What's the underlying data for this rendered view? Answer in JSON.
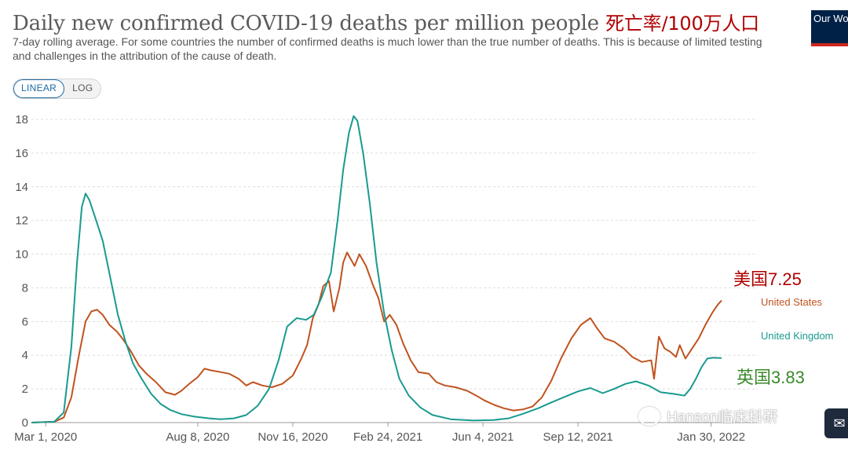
{
  "title": "Daily new confirmed COVID-19 deaths per million people",
  "title_cn": "死亡率/100万人口",
  "subtitle": "7-day rolling average. For some countries the number of confirmed deaths is much lower than the true number of deaths. This is because of limited testing and challenges in the attribution of the cause of death.",
  "logo_text": "Our World in Data",
  "scale_toggle": {
    "linear": "LINEAR",
    "log": "LOG",
    "selected": "LINEAR"
  },
  "watermark": "Hanson临床科研",
  "colors": {
    "us": "#c0531f",
    "uk": "#1a9a8f",
    "cn_us": "#b00000",
    "cn_uk": "#3a8a2a",
    "grid": "#dddddd",
    "axis_text": "#555555"
  },
  "chart_data": {
    "type": "line",
    "title": "Daily new confirmed COVID-19 deaths per million people",
    "subtitle": "7-day rolling average",
    "ylabel": "",
    "xlabel": "",
    "ylim": [
      0,
      18
    ],
    "yticks": [
      0,
      2,
      4,
      6,
      8,
      10,
      12,
      14,
      16,
      18
    ],
    "xlim": [
      "2020-02-15",
      "2022-03-20"
    ],
    "xticks": [
      {
        "label": "Mar 1, 2020",
        "date": "2020-03-01"
      },
      {
        "label": "Aug 8, 2020",
        "date": "2020-08-08"
      },
      {
        "label": "Nov 16, 2020",
        "date": "2020-11-16"
      },
      {
        "label": "Feb 24, 2021",
        "date": "2021-02-24"
      },
      {
        "label": "Jun 4, 2021",
        "date": "2021-06-04"
      },
      {
        "label": "Sep 12, 2021",
        "date": "2021-09-12"
      },
      {
        "label": "Jan 30, 2022",
        "date": "2022-01-30"
      }
    ],
    "grid": true,
    "series": [
      {
        "name": "United States",
        "color": "#c0531f",
        "end_label": "United States",
        "annotation": "美国7.25",
        "points": [
          [
            "2020-02-15",
            0
          ],
          [
            "2020-03-10",
            0.05
          ],
          [
            "2020-03-20",
            0.3
          ],
          [
            "2020-03-28",
            1.5
          ],
          [
            "2020-04-05",
            4.0
          ],
          [
            "2020-04-12",
            6.0
          ],
          [
            "2020-04-18",
            6.6
          ],
          [
            "2020-04-24",
            6.7
          ],
          [
            "2020-04-30",
            6.4
          ],
          [
            "2020-05-07",
            5.8
          ],
          [
            "2020-05-15",
            5.4
          ],
          [
            "2020-05-22",
            4.9
          ],
          [
            "2020-05-30",
            4.2
          ],
          [
            "2020-06-07",
            3.4
          ],
          [
            "2020-06-15",
            2.9
          ],
          [
            "2020-06-25",
            2.4
          ],
          [
            "2020-07-05",
            1.8
          ],
          [
            "2020-07-15",
            1.65
          ],
          [
            "2020-07-22",
            1.9
          ],
          [
            "2020-07-30",
            2.3
          ],
          [
            "2020-08-08",
            2.7
          ],
          [
            "2020-08-15",
            3.2
          ],
          [
            "2020-08-22",
            3.1
          ],
          [
            "2020-09-01",
            3.0
          ],
          [
            "2020-09-10",
            2.9
          ],
          [
            "2020-09-20",
            2.6
          ],
          [
            "2020-09-28",
            2.2
          ],
          [
            "2020-10-05",
            2.4
          ],
          [
            "2020-10-15",
            2.2
          ],
          [
            "2020-10-25",
            2.1
          ],
          [
            "2020-11-05",
            2.3
          ],
          [
            "2020-11-16",
            2.8
          ],
          [
            "2020-11-25",
            3.8
          ],
          [
            "2020-12-01",
            4.6
          ],
          [
            "2020-12-07",
            6.2
          ],
          [
            "2020-12-13",
            7.0
          ],
          [
            "2020-12-18",
            8.1
          ],
          [
            "2020-12-24",
            8.4
          ],
          [
            "2020-12-29",
            6.6
          ],
          [
            "2021-01-04",
            8.0
          ],
          [
            "2021-01-08",
            9.5
          ],
          [
            "2021-01-12",
            10.1
          ],
          [
            "2021-01-16",
            9.7
          ],
          [
            "2021-01-20",
            9.3
          ],
          [
            "2021-01-25",
            10.0
          ],
          [
            "2021-02-01",
            9.3
          ],
          [
            "2021-02-08",
            8.2
          ],
          [
            "2021-02-14",
            7.4
          ],
          [
            "2021-02-20",
            6.0
          ],
          [
            "2021-02-26",
            6.4
          ],
          [
            "2021-03-05",
            5.8
          ],
          [
            "2021-03-12",
            4.7
          ],
          [
            "2021-03-20",
            3.7
          ],
          [
            "2021-03-28",
            3.0
          ],
          [
            "2021-04-08",
            2.9
          ],
          [
            "2021-04-16",
            2.4
          ],
          [
            "2021-04-25",
            2.2
          ],
          [
            "2021-05-06",
            2.1
          ],
          [
            "2021-05-18",
            1.9
          ],
          [
            "2021-05-28",
            1.6
          ],
          [
            "2021-06-06",
            1.3
          ],
          [
            "2021-06-16",
            1.05
          ],
          [
            "2021-06-26",
            0.85
          ],
          [
            "2021-07-06",
            0.72
          ],
          [
            "2021-07-16",
            0.78
          ],
          [
            "2021-07-26",
            0.95
          ],
          [
            "2021-08-05",
            1.5
          ],
          [
            "2021-08-15",
            2.5
          ],
          [
            "2021-08-25",
            3.8
          ],
          [
            "2021-09-05",
            5.0
          ],
          [
            "2021-09-15",
            5.8
          ],
          [
            "2021-09-25",
            6.2
          ],
          [
            "2021-10-02",
            5.6
          ],
          [
            "2021-10-10",
            5.0
          ],
          [
            "2021-10-20",
            4.8
          ],
          [
            "2021-10-30",
            4.4
          ],
          [
            "2021-11-08",
            3.9
          ],
          [
            "2021-11-18",
            3.6
          ],
          [
            "2021-11-28",
            3.7
          ],
          [
            "2021-12-01",
            2.6
          ],
          [
            "2021-12-06",
            5.1
          ],
          [
            "2021-12-12",
            4.4
          ],
          [
            "2021-12-18",
            4.2
          ],
          [
            "2021-12-24",
            3.9
          ],
          [
            "2021-12-28",
            4.6
          ],
          [
            "2022-01-03",
            3.8
          ],
          [
            "2022-01-10",
            4.4
          ],
          [
            "2022-01-17",
            5.0
          ],
          [
            "2022-01-24",
            5.8
          ],
          [
            "2022-01-31",
            6.5
          ],
          [
            "2022-02-06",
            7.0
          ],
          [
            "2022-02-10",
            7.25
          ]
        ]
      },
      {
        "name": "United Kingdom",
        "color": "#1a9a8f",
        "end_label": "United Kingdom",
        "annotation": "英国3.83",
        "points": [
          [
            "2020-02-15",
            0
          ],
          [
            "2020-03-10",
            0.05
          ],
          [
            "2020-03-20",
            0.6
          ],
          [
            "2020-03-28",
            4.5
          ],
          [
            "2020-04-03",
            9.5
          ],
          [
            "2020-04-08",
            12.8
          ],
          [
            "2020-04-12",
            13.6
          ],
          [
            "2020-04-16",
            13.2
          ],
          [
            "2020-04-22",
            12.2
          ],
          [
            "2020-04-30",
            10.8
          ],
          [
            "2020-05-08",
            8.6
          ],
          [
            "2020-05-16",
            6.4
          ],
          [
            "2020-05-24",
            4.8
          ],
          [
            "2020-06-01",
            3.5
          ],
          [
            "2020-06-10",
            2.6
          ],
          [
            "2020-06-20",
            1.7
          ],
          [
            "2020-06-30",
            1.1
          ],
          [
            "2020-07-10",
            0.75
          ],
          [
            "2020-07-22",
            0.5
          ],
          [
            "2020-08-05",
            0.35
          ],
          [
            "2020-08-20",
            0.25
          ],
          [
            "2020-09-01",
            0.2
          ],
          [
            "2020-09-15",
            0.25
          ],
          [
            "2020-09-28",
            0.45
          ],
          [
            "2020-10-10",
            1.0
          ],
          [
            "2020-10-22",
            2.0
          ],
          [
            "2020-11-01",
            3.7
          ],
          [
            "2020-11-10",
            5.7
          ],
          [
            "2020-11-20",
            6.2
          ],
          [
            "2020-11-30",
            6.1
          ],
          [
            "2020-12-08",
            6.4
          ],
          [
            "2020-12-16",
            7.4
          ],
          [
            "2020-12-26",
            8.9
          ],
          [
            "2021-01-02",
            12.0
          ],
          [
            "2021-01-08",
            15.0
          ],
          [
            "2021-01-14",
            17.2
          ],
          [
            "2021-01-19",
            18.2
          ],
          [
            "2021-01-23",
            17.9
          ],
          [
            "2021-01-29",
            16.0
          ],
          [
            "2021-02-05",
            13.0
          ],
          [
            "2021-02-12",
            9.5
          ],
          [
            "2021-02-20",
            6.5
          ],
          [
            "2021-02-28",
            4.3
          ],
          [
            "2021-03-08",
            2.6
          ],
          [
            "2021-03-18",
            1.6
          ],
          [
            "2021-03-30",
            0.9
          ],
          [
            "2021-04-12",
            0.45
          ],
          [
            "2021-05-01",
            0.2
          ],
          [
            "2021-05-25",
            0.12
          ],
          [
            "2021-06-15",
            0.15
          ],
          [
            "2021-07-01",
            0.25
          ],
          [
            "2021-07-15",
            0.5
          ],
          [
            "2021-08-01",
            0.85
          ],
          [
            "2021-08-15",
            1.2
          ],
          [
            "2021-09-01",
            1.6
          ],
          [
            "2021-09-12",
            1.85
          ],
          [
            "2021-09-25",
            2.05
          ],
          [
            "2021-10-08",
            1.75
          ],
          [
            "2021-10-20",
            2.0
          ],
          [
            "2021-11-01",
            2.3
          ],
          [
            "2021-11-12",
            2.45
          ],
          [
            "2021-11-25",
            2.2
          ],
          [
            "2021-12-08",
            1.8
          ],
          [
            "2021-12-22",
            1.7
          ],
          [
            "2022-01-02",
            1.6
          ],
          [
            "2022-01-08",
            2.0
          ],
          [
            "2022-01-14",
            2.6
          ],
          [
            "2022-01-20",
            3.3
          ],
          [
            "2022-01-26",
            3.8
          ],
          [
            "2022-02-01",
            3.85
          ],
          [
            "2022-02-10",
            3.83
          ]
        ]
      }
    ]
  }
}
